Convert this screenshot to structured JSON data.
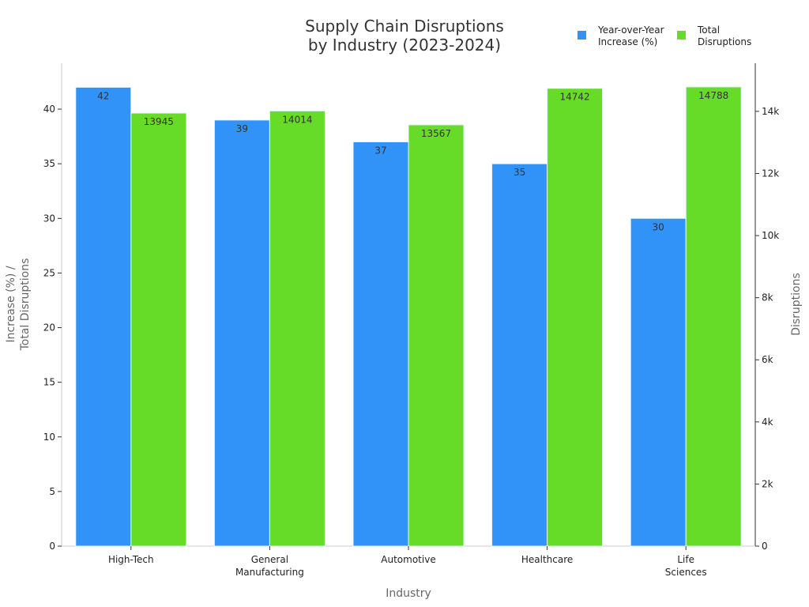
{
  "chart_data": {
    "type": "bar",
    "title": [
      "Supply Chain Disruptions",
      "by Industry (2023-2024)"
    ],
    "xlabel": "Industry",
    "ylabel": [
      "Increase (%) /",
      "Total Disruptions"
    ],
    "ylabel_right": "Disruptions",
    "categories": [
      [
        "High-Tech"
      ],
      [
        "General",
        "Manufacturing"
      ],
      [
        "Automotive"
      ],
      [
        "Healthcare"
      ],
      [
        "Life",
        "Sciences"
      ]
    ],
    "series": [
      {
        "name": [
          "Year-over-Year",
          "Increase (%)"
        ],
        "axis": "left",
        "color": "#3192f8",
        "values": [
          42,
          39,
          37,
          35,
          30
        ]
      },
      {
        "name": [
          "Total",
          "Disruptions"
        ],
        "axis": "right",
        "color": "#66dc28",
        "values": [
          13945,
          14014,
          13567,
          14742,
          14788
        ]
      }
    ],
    "ylim": [
      0,
      44.2
    ],
    "yticks": [
      0,
      5,
      10,
      15,
      20,
      25,
      30,
      35,
      40
    ],
    "ylim_right": [
      0,
      15550
    ],
    "yticks_right": [
      0,
      2000,
      4000,
      6000,
      8000,
      10000,
      12000,
      14000
    ],
    "yticks_right_labels": [
      "0",
      "2k",
      "4k",
      "6k",
      "8k",
      "10k",
      "12k",
      "14k"
    ],
    "grid": false,
    "legend_position": "top-right",
    "data_labels": true
  }
}
